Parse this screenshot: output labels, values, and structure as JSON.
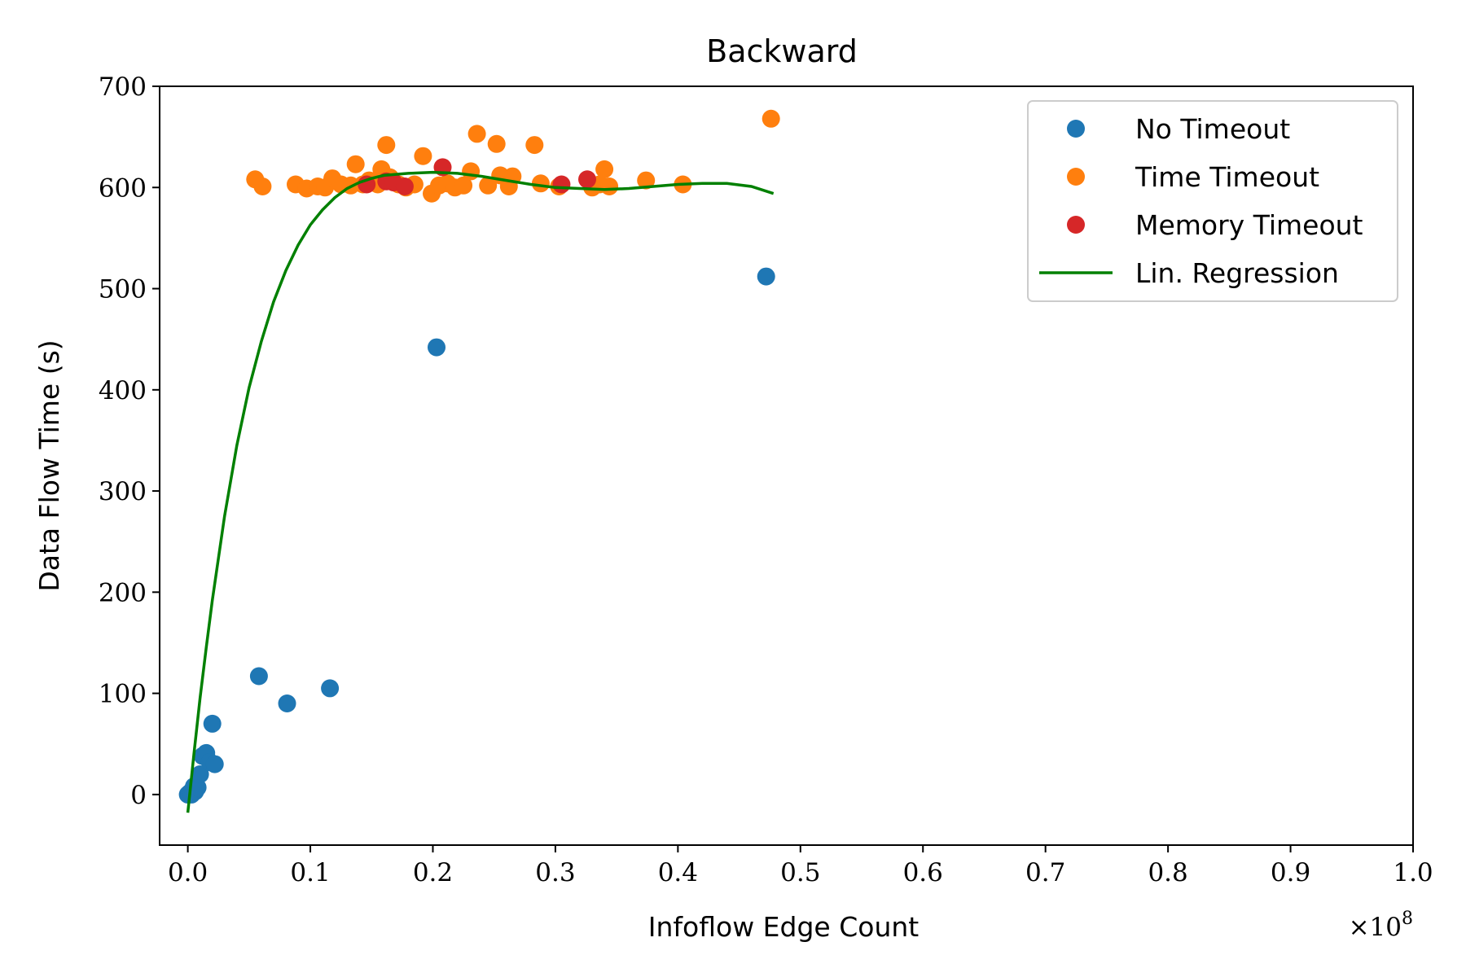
{
  "chart_data": {
    "type": "scatter",
    "title": "Backward",
    "xlabel": "Infoflow Edge Count",
    "ylabel": "Data Flow Time (s)",
    "x_multiplier_label": "×10^8",
    "x_multiplier_base": "×10",
    "x_multiplier_exp": "8",
    "xlim": [
      -0.023,
      1.0
    ],
    "ylim": [
      -50,
      700
    ],
    "x_ticks": [
      0.0,
      0.1,
      0.2,
      0.3,
      0.4,
      0.5,
      0.6,
      0.7,
      0.8,
      0.9,
      1.0
    ],
    "x_tick_labels": [
      "0.0",
      "0.1",
      "0.2",
      "0.3",
      "0.4",
      "0.5",
      "0.6",
      "0.7",
      "0.8",
      "0.9",
      "1.0"
    ],
    "y_ticks": [
      0,
      100,
      200,
      300,
      400,
      500,
      600,
      700
    ],
    "y_tick_labels": [
      "0",
      "100",
      "200",
      "300",
      "400",
      "500",
      "600",
      "700"
    ],
    "grid": false,
    "legend_position": "top-right",
    "series": [
      {
        "name": "No Timeout",
        "color": "#1f77b4",
        "kind": "points",
        "points": [
          [
            0.0,
            0
          ],
          [
            0.001,
            1
          ],
          [
            0.002,
            2
          ],
          [
            0.003,
            0
          ],
          [
            0.004,
            5
          ],
          [
            0.005,
            8
          ],
          [
            0.006,
            3
          ],
          [
            0.007,
            6
          ],
          [
            0.008,
            7
          ],
          [
            0.01,
            20
          ],
          [
            0.012,
            38
          ],
          [
            0.015,
            41
          ],
          [
            0.018,
            32
          ],
          [
            0.02,
            70
          ],
          [
            0.022,
            30
          ],
          [
            0.058,
            117
          ],
          [
            0.081,
            90
          ],
          [
            0.116,
            105
          ],
          [
            0.203,
            442
          ],
          [
            0.472,
            512
          ]
        ]
      },
      {
        "name": "Time Timeout",
        "color": "#ff7f0e",
        "kind": "points",
        "points": [
          [
            0.055,
            608
          ],
          [
            0.061,
            601
          ],
          [
            0.088,
            603
          ],
          [
            0.097,
            599
          ],
          [
            0.106,
            601
          ],
          [
            0.112,
            600
          ],
          [
            0.118,
            609
          ],
          [
            0.125,
            603
          ],
          [
            0.133,
            602
          ],
          [
            0.137,
            623
          ],
          [
            0.143,
            603
          ],
          [
            0.148,
            607
          ],
          [
            0.155,
            603
          ],
          [
            0.158,
            618
          ],
          [
            0.162,
            642
          ],
          [
            0.165,
            610
          ],
          [
            0.172,
            603
          ],
          [
            0.178,
            600
          ],
          [
            0.185,
            603
          ],
          [
            0.192,
            631
          ],
          [
            0.199,
            594
          ],
          [
            0.205,
            602
          ],
          [
            0.212,
            604
          ],
          [
            0.218,
            600
          ],
          [
            0.225,
            602
          ],
          [
            0.231,
            616
          ],
          [
            0.236,
            653
          ],
          [
            0.245,
            602
          ],
          [
            0.252,
            643
          ],
          [
            0.255,
            612
          ],
          [
            0.262,
            601
          ],
          [
            0.265,
            611
          ],
          [
            0.288,
            604
          ],
          [
            0.283,
            642
          ],
          [
            0.303,
            601
          ],
          [
            0.33,
            600
          ],
          [
            0.336,
            603
          ],
          [
            0.34,
            618
          ],
          [
            0.344,
            601
          ],
          [
            0.374,
            607
          ],
          [
            0.404,
            603
          ],
          [
            0.476,
            668
          ]
        ]
      },
      {
        "name": "Memory Timeout",
        "color": "#d62728",
        "kind": "points",
        "points": [
          [
            0.146,
            603
          ],
          [
            0.162,
            606
          ],
          [
            0.168,
            605
          ],
          [
            0.177,
            601
          ],
          [
            0.208,
            620
          ],
          [
            0.305,
            603
          ],
          [
            0.326,
            608
          ]
        ]
      },
      {
        "name": "Lin. Regression",
        "color": "#008000",
        "kind": "line",
        "points": [
          [
            0.0,
            -18
          ],
          [
            0.005,
            40
          ],
          [
            0.01,
            95
          ],
          [
            0.015,
            145
          ],
          [
            0.02,
            192
          ],
          [
            0.03,
            275
          ],
          [
            0.04,
            345
          ],
          [
            0.05,
            402
          ],
          [
            0.06,
            448
          ],
          [
            0.07,
            487
          ],
          [
            0.08,
            518
          ],
          [
            0.09,
            543
          ],
          [
            0.1,
            563
          ],
          [
            0.11,
            578
          ],
          [
            0.12,
            590
          ],
          [
            0.13,
            599
          ],
          [
            0.14,
            605
          ],
          [
            0.15,
            609
          ],
          [
            0.16,
            612
          ],
          [
            0.18,
            614
          ],
          [
            0.2,
            615
          ],
          [
            0.22,
            614
          ],
          [
            0.24,
            611
          ],
          [
            0.26,
            607
          ],
          [
            0.28,
            603
          ],
          [
            0.3,
            600
          ],
          [
            0.32,
            599
          ],
          [
            0.34,
            598
          ],
          [
            0.36,
            599
          ],
          [
            0.38,
            601
          ],
          [
            0.4,
            603
          ],
          [
            0.42,
            604
          ],
          [
            0.44,
            604
          ],
          [
            0.46,
            601
          ],
          [
            0.478,
            594
          ]
        ]
      }
    ]
  }
}
